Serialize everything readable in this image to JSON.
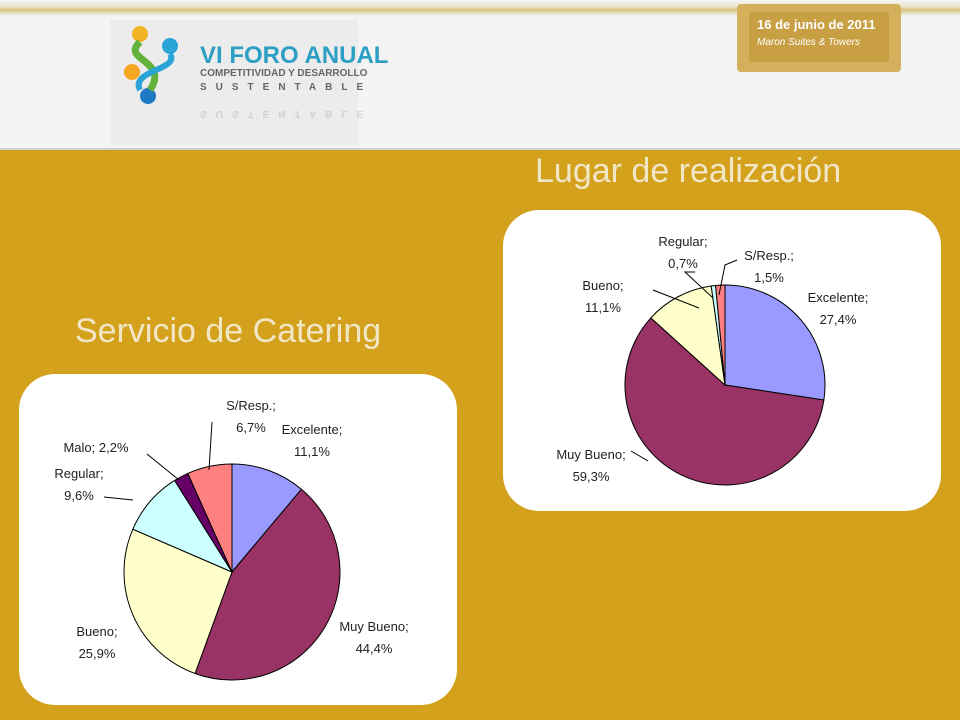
{
  "header": {
    "logo": {
      "title": "VI FORO ANUAL",
      "line1": "COMPETITIVIDAD Y DESARROLLO",
      "line2": "SUSTENTABLE"
    },
    "date_badge": {
      "date": "16 de junio de 2011",
      "venue": "Maron Suites & Towers"
    }
  },
  "colors": {
    "background": "#d4a11c",
    "title_text": "#f1e7c7"
  },
  "chart_data": [
    {
      "type": "pie",
      "title": "Lugar de realización",
      "categories": [
        "Excelente",
        "Muy Bueno",
        "Bueno",
        "Regular",
        "S/Resp."
      ],
      "values": [
        27.4,
        59.3,
        11.1,
        0.7,
        1.5
      ],
      "labels": [
        [
          "Excelente;",
          "27,4%"
        ],
        [
          "Muy Bueno;",
          "59,3%"
        ],
        [
          "Bueno;",
          "11,1%"
        ],
        [
          "Regular;",
          "0,7%"
        ],
        [
          "S/Resp.;",
          "1,5%"
        ]
      ],
      "colors": [
        "#9999ff",
        "#993366",
        "#ffffcc",
        "#ccffff",
        "#ff8080"
      ]
    },
    {
      "type": "pie",
      "title": "Servicio de Catering",
      "categories": [
        "Excelente",
        "Muy Bueno",
        "Bueno",
        "Regular",
        "Malo",
        "S/Resp."
      ],
      "values": [
        11.1,
        44.4,
        25.9,
        9.6,
        2.2,
        6.7
      ],
      "labels": [
        [
          "Excelente;",
          "11,1%"
        ],
        [
          "Muy Bueno;",
          "44,4%"
        ],
        [
          "Bueno;",
          "25,9%"
        ],
        [
          "Regular;",
          "9,6%"
        ],
        [
          "Malo; 2,2%"
        ],
        [
          "S/Resp.;",
          "6,7%"
        ]
      ],
      "colors": [
        "#9999ff",
        "#993366",
        "#ffffcc",
        "#ccffff",
        "#660066",
        "#ff8080"
      ]
    }
  ]
}
